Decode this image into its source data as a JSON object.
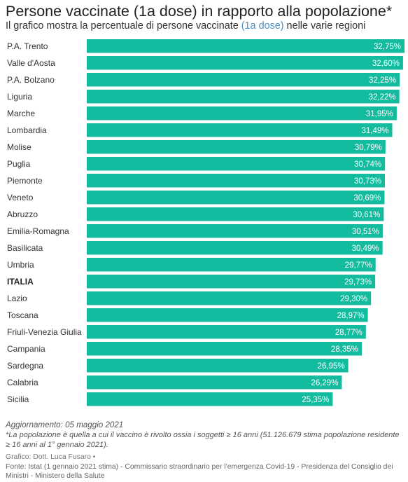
{
  "header": {
    "title": "Persone vaccinate (1a dose) in rapporto alla popolazione*",
    "subtitle_pre": "Il grafico mostra la percentuale di persone vaccinate ",
    "subtitle_highlight": "(1a dose)",
    "subtitle_post": " nelle varie regioni"
  },
  "colors": {
    "bar": "#13bc9f",
    "highlight": "#4a90c8"
  },
  "chart_data": {
    "type": "bar",
    "orientation": "horizontal",
    "categories": [
      "P.A. Trento",
      "Valle d'Aosta",
      "P.A. Bolzano",
      "Liguria",
      "Marche",
      "Lombardia",
      "Molise",
      "Puglia",
      "Piemonte",
      "Veneto",
      "Abruzzo",
      "Emilia-Romagna",
      "Basilicata",
      "Umbria",
      "ITALIA",
      "Lazio",
      "Toscana",
      "Friuli-Venezia Giulia",
      "Campania",
      "Sardegna",
      "Calabria",
      "Sicilia"
    ],
    "values": [
      32.75,
      32.6,
      32.25,
      32.22,
      31.95,
      31.49,
      30.79,
      30.74,
      30.73,
      30.69,
      30.61,
      30.51,
      30.49,
      29.77,
      29.73,
      29.3,
      28.97,
      28.77,
      28.35,
      26.95,
      26.29,
      25.35
    ],
    "value_labels": [
      "32,75%",
      "32,60%",
      "32,25%",
      "32,22%",
      "31,95%",
      "31,49%",
      "30,79%",
      "30,74%",
      "30,73%",
      "30,69%",
      "30,61%",
      "30,51%",
      "30,49%",
      "29,77%",
      "29,73%",
      "29,30%",
      "28,97%",
      "28,77%",
      "28,35%",
      "26,95%",
      "26,29%",
      "25,35%"
    ],
    "bold_categories": [
      "ITALIA"
    ],
    "xlim": [
      0,
      32.75
    ]
  },
  "footer": {
    "update": "Aggiornamento: 05 maggio 2021",
    "note": "*La popolazione è quella a cui il vaccino è rivolto ossia i soggetti ≥ 16 anni (51.126.679 stima popolazione residente ≥ 16 anni al 1° gennaio 2021).",
    "credit": "Grafico: Dott. Luca Fusaro •",
    "source": "Fonte: Istat (1 gennaio 2021 stima) - Commissario straordinario per l'emergenza Covid-19 - Presidenza del Consiglio dei Ministri - Ministero della Salute"
  }
}
